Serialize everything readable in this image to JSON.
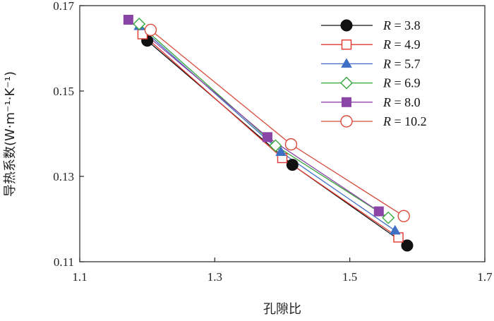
{
  "chart_data": {
    "type": "line",
    "xlabel": "孔隙比",
    "ylabel": "导热系数(W·m⁻¹·K⁻¹)",
    "xlim": [
      1.1,
      1.7
    ],
    "ylim": [
      0.11,
      0.17
    ],
    "xticks": [
      "1.1",
      "1.3",
      "1.5",
      "1.7"
    ],
    "yticks": [
      "0.11",
      "0.13",
      "0.15",
      "0.17"
    ],
    "legend_position": "top-right",
    "grid": false,
    "series": [
      {
        "name": "R = 3.8",
        "label_var": "R",
        "label_value": " = 3.8",
        "marker": "filled-circle",
        "color": "#111111",
        "points": [
          [
            1.2,
            0.1618
          ],
          [
            1.415,
            0.1327
          ],
          [
            1.585,
            0.1138
          ]
        ]
      },
      {
        "name": "R = 4.9",
        "label_var": "R",
        "label_value": " = 4.9",
        "marker": "open-square",
        "color": "#e0382e",
        "points": [
          [
            1.193,
            0.1633
          ],
          [
            1.4,
            0.1343
          ],
          [
            1.572,
            0.1157
          ]
        ]
      },
      {
        "name": "R = 5.7",
        "label_var": "R",
        "label_value": " = 5.7",
        "marker": "filled-triangle",
        "color": "#3f6fc4",
        "points": [
          [
            1.188,
            0.1652
          ],
          [
            1.398,
            0.1357
          ],
          [
            1.567,
            0.1173
          ]
        ]
      },
      {
        "name": "R = 6.9",
        "label_var": "R",
        "label_value": " = 6.9",
        "marker": "open-diamond",
        "color": "#35a83a",
        "points": [
          [
            1.188,
            0.1657
          ],
          [
            1.39,
            0.1372
          ],
          [
            1.557,
            0.1203
          ]
        ]
      },
      {
        "name": "R = 8.0",
        "label_var": "R",
        "label_value": " = 8.0",
        "marker": "filled-square",
        "color": "#8b45a6",
        "points": [
          [
            1.172,
            0.1667
          ],
          [
            1.378,
            0.1392
          ],
          [
            1.543,
            0.1218
          ]
        ]
      },
      {
        "name": "R = 10.2",
        "label_var": "R",
        "label_value": " = 10.2",
        "marker": "open-circle",
        "color": "#d84a3a",
        "points": [
          [
            1.205,
            0.1643
          ],
          [
            1.413,
            0.1375
          ],
          [
            1.58,
            0.1207
          ]
        ]
      }
    ]
  }
}
